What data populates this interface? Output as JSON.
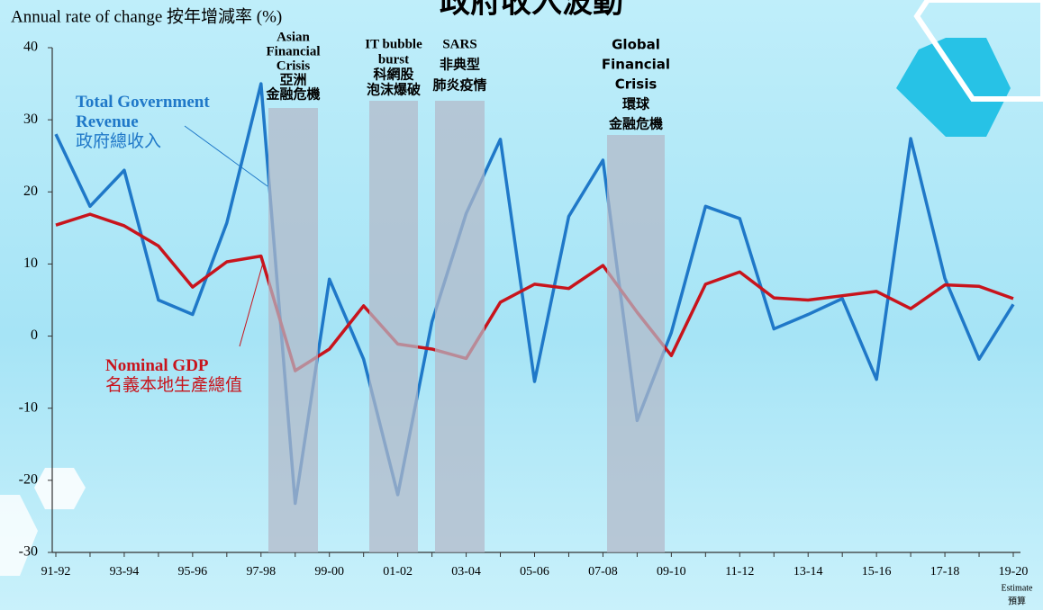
{
  "chart_data": {
    "type": "line",
    "title": "政府收入波動",
    "y_label": "Annual rate of change  按年增減率 (%)",
    "categories": [
      "91-92",
      null,
      "93-94",
      null,
      "95-96",
      null,
      "97-98",
      null,
      "99-00",
      null,
      "01-02",
      null,
      "03-04",
      null,
      "05-06",
      null,
      "07-08",
      null,
      "09-10",
      null,
      "11-12",
      null,
      "13-14",
      null,
      "15-16",
      null,
      "17-18",
      null,
      "19-20"
    ],
    "last_category_note": [
      "Estimate",
      "預算"
    ],
    "series": [
      {
        "name": "Total Government Revenue",
        "name_zh": "政府總收入",
        "color": "#1f78c8",
        "values": [
          28,
          18,
          23,
          5,
          3,
          15.7,
          35,
          -23.2,
          7.9,
          -3.2,
          -22,
          2,
          17,
          27.3,
          -6.3,
          16.6,
          24.4,
          -11.7,
          0.5,
          18,
          16.3,
          1,
          3,
          5.2,
          -6,
          27.4,
          8,
          -3.2,
          4.4
        ]
      },
      {
        "name": "Nominal GDP",
        "name_zh": "名義本地生產總值",
        "color": "#c8141c",
        "values": [
          15.4,
          16.9,
          15.3,
          12.5,
          6.8,
          10.3,
          11.1,
          -4.8,
          -1.8,
          4.2,
          -1.1,
          -1.8,
          -3.1,
          4.7,
          7.2,
          6.6,
          9.8,
          3.3,
          -2.7,
          7.2,
          8.9,
          5.3,
          5.0,
          5.6,
          6.2,
          3.8,
          7.1,
          6.9,
          5.2
        ]
      }
    ],
    "annotations": [
      [
        "Asian",
        "Financial",
        "Crisis",
        "亞洲",
        "金融危機"
      ],
      [
        "IT bubble",
        "burst",
        "科網股",
        "泡沫爆破"
      ],
      [
        "SARS",
        "非典型",
        "肺炎疫情"
      ],
      [
        "Global",
        "Financial",
        "Crisis",
        "環球",
        "金融危機"
      ]
    ],
    "ylim": [
      -30,
      40
    ],
    "yticks": [
      -30,
      -20,
      -10,
      0,
      10,
      20,
      30,
      40
    ]
  }
}
